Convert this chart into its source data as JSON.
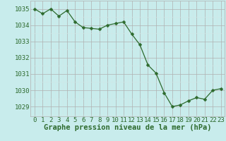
{
  "x": [
    0,
    1,
    2,
    3,
    4,
    5,
    6,
    7,
    8,
    9,
    10,
    11,
    12,
    13,
    14,
    15,
    16,
    17,
    18,
    19,
    20,
    21,
    22,
    23
  ],
  "y": [
    1035.0,
    1034.7,
    1035.0,
    1034.55,
    1034.9,
    1034.2,
    1033.85,
    1033.8,
    1033.75,
    1034.0,
    1034.1,
    1034.2,
    1033.45,
    1032.8,
    1031.55,
    1031.05,
    1029.85,
    1029.0,
    1029.1,
    1029.35,
    1029.55,
    1029.45,
    1030.0,
    1030.1
  ],
  "line_color": "#2d6a2d",
  "marker": "D",
  "marker_size": 2.5,
  "bg_color": "#c8ecec",
  "grid_major_color": "#b0b0b0",
  "grid_minor_color": "#d0e8e8",
  "xlabel": "Graphe pression niveau de la mer (hPa)",
  "xlabel_color": "#2d6a2d",
  "xlabel_fontsize": 7.5,
  "tick_color": "#2d6a2d",
  "tick_fontsize": 6.5,
  "ylim": [
    1028.4,
    1035.5
  ],
  "xlim": [
    -0.5,
    23.5
  ],
  "yticks": [
    1029,
    1030,
    1031,
    1032,
    1033,
    1034,
    1035
  ],
  "xticks": [
    0,
    1,
    2,
    3,
    4,
    5,
    6,
    7,
    8,
    9,
    10,
    11,
    12,
    13,
    14,
    15,
    16,
    17,
    18,
    19,
    20,
    21,
    22,
    23
  ]
}
